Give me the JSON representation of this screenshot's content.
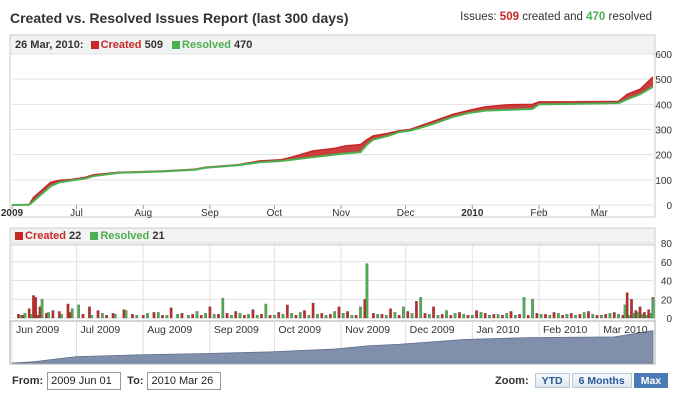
{
  "header": {
    "title": "Created vs. Resolved Issues Report (last 300 days)",
    "summary_prefix": "Issues:",
    "summary_created": "509",
    "summary_mid": "created and",
    "summary_resolved": "470",
    "summary_suffix": "resolved"
  },
  "colors": {
    "created": "#c62828",
    "resolved": "#4caf50",
    "navigator": "#7f8fac",
    "grid": "#e3e3e3"
  },
  "top_legend": {
    "date": "26 Mar, 2010:",
    "created_label": "Created",
    "created_value": "509",
    "resolved_label": "Resolved",
    "resolved_value": "470"
  },
  "bottom_legend": {
    "created_label": "Created",
    "created_value": "22",
    "resolved_label": "Resolved",
    "resolved_value": "21"
  },
  "footer": {
    "from_label": "From:",
    "from_value": "2009 Jun 01",
    "to_label": "To:",
    "to_value": "2010 Mar 26",
    "zoom_label": "Zoom:",
    "zoom_buttons": [
      "YTD",
      "6 Months",
      "Max"
    ],
    "zoom_active": "Max"
  },
  "chart_data": [
    {
      "type": "area",
      "name": "cumulative",
      "x_unit": "days since 2009-06-01",
      "x_range": [
        0,
        298
      ],
      "ylim": [
        0,
        600
      ],
      "yticks": [
        0,
        100,
        200,
        300,
        400,
        500,
        600
      ],
      "xticks": [
        {
          "label": "2009",
          "day": 0,
          "bold": true
        },
        {
          "label": "Jul",
          "day": 30
        },
        {
          "label": "Aug",
          "day": 61
        },
        {
          "label": "Sep",
          "day": 92
        },
        {
          "label": "Oct",
          "day": 122
        },
        {
          "label": "Nov",
          "day": 153
        },
        {
          "label": "Dec",
          "day": 183
        },
        {
          "label": "2010",
          "day": 214,
          "bold": true
        },
        {
          "label": "Feb",
          "day": 245
        },
        {
          "label": "Mar",
          "day": 273
        }
      ],
      "grid": true,
      "series": [
        {
          "name": "Created",
          "points": [
            [
              0,
              0
            ],
            [
              8,
              2
            ],
            [
              10,
              30
            ],
            [
              14,
              60
            ],
            [
              18,
              90
            ],
            [
              22,
              98
            ],
            [
              28,
              102
            ],
            [
              34,
              110
            ],
            [
              38,
              120
            ],
            [
              50,
              130
            ],
            [
              70,
              135
            ],
            [
              85,
              142
            ],
            [
              90,
              150
            ],
            [
              105,
              160
            ],
            [
              115,
              175
            ],
            [
              125,
              180
            ],
            [
              130,
              190
            ],
            [
              140,
              215
            ],
            [
              150,
              225
            ],
            [
              155,
              235
            ],
            [
              162,
              240
            ],
            [
              165,
              260
            ],
            [
              168,
              275
            ],
            [
              175,
              285
            ],
            [
              180,
              295
            ],
            [
              185,
              300
            ],
            [
              195,
              330
            ],
            [
              205,
              360
            ],
            [
              212,
              375
            ],
            [
              220,
              390
            ],
            [
              230,
              398
            ],
            [
              242,
              400
            ],
            [
              245,
              410
            ],
            [
              260,
              410
            ],
            [
              282,
              412
            ],
            [
              286,
              440
            ],
            [
              292,
              460
            ],
            [
              298,
              509
            ]
          ]
        },
        {
          "name": "Resolved",
          "points": [
            [
              0,
              0
            ],
            [
              8,
              1
            ],
            [
              10,
              15
            ],
            [
              14,
              45
            ],
            [
              18,
              75
            ],
            [
              22,
              90
            ],
            [
              28,
              98
            ],
            [
              34,
              105
            ],
            [
              38,
              115
            ],
            [
              50,
              128
            ],
            [
              70,
              133
            ],
            [
              85,
              140
            ],
            [
              90,
              148
            ],
            [
              105,
              158
            ],
            [
              115,
              170
            ],
            [
              125,
              175
            ],
            [
              130,
              180
            ],
            [
              140,
              190
            ],
            [
              150,
              200
            ],
            [
              155,
              205
            ],
            [
              162,
              210
            ],
            [
              165,
              240
            ],
            [
              168,
              260
            ],
            [
              175,
              275
            ],
            [
              180,
              290
            ],
            [
              185,
              295
            ],
            [
              195,
              320
            ],
            [
              205,
              350
            ],
            [
              212,
              365
            ],
            [
              220,
              375
            ],
            [
              230,
              378
            ],
            [
              242,
              382
            ],
            [
              245,
              400
            ],
            [
              260,
              402
            ],
            [
              282,
              405
            ],
            [
              286,
              420
            ],
            [
              292,
              440
            ],
            [
              298,
              470
            ]
          ]
        }
      ]
    },
    {
      "type": "bar",
      "name": "daily",
      "x_unit": "days since 2009-06-01",
      "ylim": [
        0,
        80
      ],
      "yticks": [
        0,
        20,
        40,
        60,
        80
      ],
      "grid": true,
      "series": [
        {
          "name": "Created",
          "days": [
            3,
            5,
            8,
            10,
            11,
            12,
            13,
            16,
            19,
            22,
            26,
            27,
            33,
            36,
            40,
            44,
            47,
            52,
            56,
            61,
            66,
            70,
            74,
            79,
            84,
            88,
            92,
            96,
            100,
            104,
            108,
            112,
            116,
            120,
            124,
            128,
            132,
            136,
            140,
            144,
            148,
            152,
            156,
            160,
            164,
            168,
            172,
            176,
            180,
            184,
            188,
            192,
            196,
            200,
            204,
            208,
            212,
            216,
            220,
            224,
            228,
            232,
            236,
            240,
            244,
            248,
            252,
            256,
            260,
            264,
            268,
            272,
            276,
            280,
            284,
            286,
            288,
            290,
            292,
            294,
            296,
            298
          ],
          "values": [
            4,
            3,
            10,
            24,
            22,
            3,
            12,
            5,
            8,
            7,
            15,
            6,
            4,
            12,
            8,
            3,
            5,
            9,
            4,
            3,
            6,
            3,
            11,
            5,
            4,
            3,
            12,
            4,
            5,
            7,
            3,
            9,
            4,
            3,
            6,
            14,
            3,
            8,
            16,
            5,
            4,
            12,
            7,
            3,
            20,
            5,
            4,
            10,
            3,
            7,
            18,
            5,
            12,
            4,
            3,
            6,
            3,
            8,
            5,
            4,
            3,
            7,
            4,
            3,
            5,
            4,
            6,
            3,
            5,
            4,
            7,
            3,
            4,
            6,
            3,
            27,
            20,
            8,
            12,
            6,
            9,
            22
          ]
        },
        {
          "name": "Resolved",
          "days": [
            4,
            6,
            9,
            14,
            17,
            23,
            28,
            31,
            37,
            42,
            48,
            53,
            58,
            63,
            68,
            72,
            77,
            82,
            86,
            90,
            94,
            98,
            102,
            106,
            110,
            114,
            118,
            122,
            126,
            130,
            134,
            138,
            142,
            146,
            150,
            154,
            158,
            162,
            165,
            170,
            174,
            178,
            182,
            186,
            190,
            194,
            198,
            202,
            206,
            210,
            214,
            218,
            222,
            226,
            230,
            234,
            238,
            242,
            246,
            250,
            254,
            258,
            262,
            266,
            270,
            274,
            278,
            282,
            285,
            287,
            289,
            291,
            293,
            295,
            297,
            298
          ],
          "values": [
            3,
            5,
            4,
            20,
            6,
            4,
            10,
            14,
            3,
            5,
            4,
            8,
            3,
            5,
            6,
            3,
            4,
            3,
            7,
            5,
            4,
            21,
            3,
            5,
            4,
            3,
            15,
            3,
            4,
            5,
            6,
            3,
            4,
            3,
            7,
            5,
            3,
            12,
            58,
            4,
            3,
            6,
            12,
            5,
            22,
            4,
            3,
            8,
            5,
            4,
            3,
            6,
            3,
            4,
            5,
            3,
            22,
            20,
            4,
            3,
            5,
            4,
            3,
            6,
            4,
            3,
            5,
            4,
            14,
            3,
            5,
            6,
            4,
            3,
            5,
            21
          ]
        }
      ]
    },
    {
      "type": "area",
      "name": "navigator",
      "x_unit": "days since 2009-06-01",
      "series": [
        {
          "name": "navigator",
          "points": [
            [
              0,
              0
            ],
            [
              10,
              20
            ],
            [
              20,
              60
            ],
            [
              30,
              100
            ],
            [
              60,
              130
            ],
            [
              90,
              150
            ],
            [
              120,
              175
            ],
            [
              150,
              220
            ],
            [
              165,
              270
            ],
            [
              180,
              295
            ],
            [
              210,
              370
            ],
            [
              240,
              400
            ],
            [
              280,
              412
            ],
            [
              298,
              509
            ]
          ]
        }
      ],
      "xticks": [
        {
          "label": "Jun 2009",
          "day": 0
        },
        {
          "label": "Jul 2009",
          "day": 30
        },
        {
          "label": "Aug 2009",
          "day": 61
        },
        {
          "label": "Sep 2009",
          "day": 92
        },
        {
          "label": "Oct 2009",
          "day": 122
        },
        {
          "label": "Nov 2009",
          "day": 153
        },
        {
          "label": "Dec 2009",
          "day": 183
        },
        {
          "label": "Jan 2010",
          "day": 214
        },
        {
          "label": "Feb 2010",
          "day": 245
        },
        {
          "label": "Mar 2010",
          "day": 273
        }
      ]
    }
  ]
}
